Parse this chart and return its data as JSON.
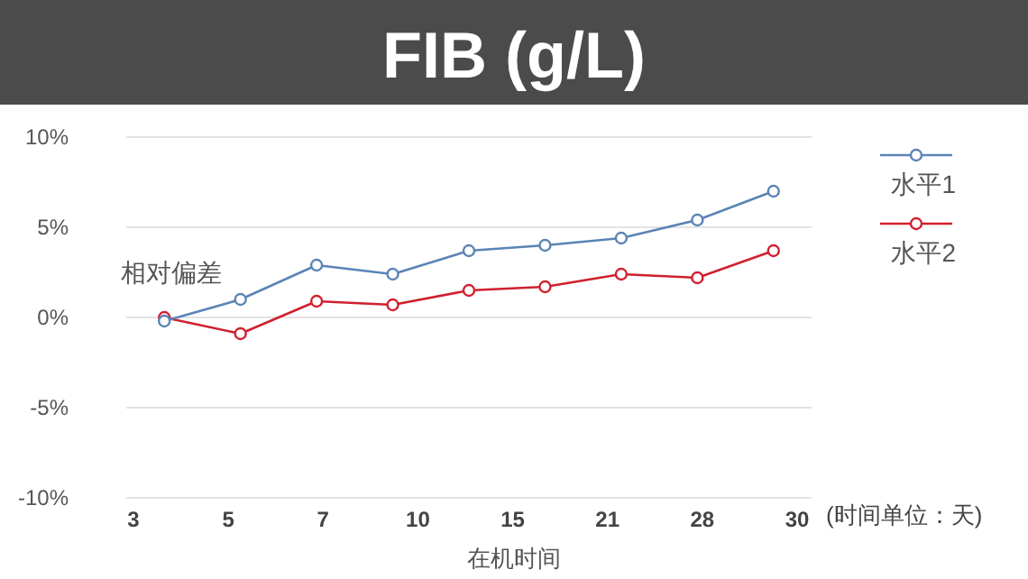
{
  "chart_data": {
    "type": "line",
    "title": "FIB (g/L)",
    "xlabel": "在机时间",
    "ylabel": "相对偏差",
    "annotations": [
      "3",
      "5",
      "7",
      "10",
      "15",
      "21",
      "28",
      "30",
      "(时间单位：天)"
    ],
    "categories": [
      null,
      null,
      null,
      null,
      null,
      null,
      null,
      null,
      null
    ],
    "ylim": [
      -10,
      10
    ],
    "yticks": [
      {
        "value": -10,
        "label": "-10%"
      },
      {
        "value": -5,
        "label": "-5%"
      },
      {
        "value": 0,
        "label": "0%"
      },
      {
        "value": 5,
        "label": "5%"
      },
      {
        "value": 10,
        "label": "10%"
      }
    ],
    "series": [
      {
        "name": "水平1",
        "color": "#5b84b5",
        "values": [
          -0.2,
          1.0,
          2.9,
          2.4,
          3.7,
          4.0,
          4.4,
          5.4,
          7.0
        ]
      },
      {
        "name": "水平2",
        "color": "#d0202e",
        "values": [
          0.0,
          -0.9,
          0.9,
          0.7,
          1.5,
          1.7,
          2.4,
          2.2,
          3.7
        ]
      }
    ],
    "grid": "y",
    "legend": "top right",
    "marker": "circle",
    "line_style": "solid"
  }
}
